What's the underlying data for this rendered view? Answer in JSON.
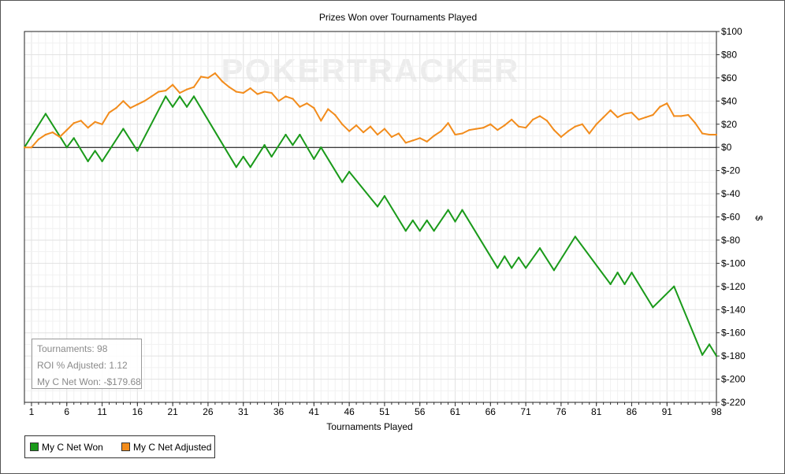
{
  "chart_data": {
    "type": "line",
    "title": "Prizes Won over Tournaments Played",
    "xlabel": "Tournaments Played",
    "ylabel": "$",
    "watermark": "POKERTRACKER",
    "xlim": [
      0,
      98
    ],
    "ylim": [
      -220,
      100
    ],
    "x_ticks": [
      1,
      6,
      11,
      16,
      21,
      26,
      31,
      36,
      41,
      46,
      51,
      56,
      61,
      66,
      71,
      76,
      81,
      86,
      91,
      98
    ],
    "y_ticks": [
      100,
      80,
      60,
      40,
      20,
      0,
      -20,
      -40,
      -60,
      -80,
      -100,
      -120,
      -140,
      -160,
      -180,
      -200,
      -220
    ],
    "y_tick_labels": [
      "$100",
      "$80",
      "$60",
      "$40",
      "$20",
      "$0",
      "$-20",
      "$-40",
      "$-60",
      "$-80",
      "$-100",
      "$-120",
      "$-140",
      "$-160",
      "$-180",
      "$-200",
      "$-220"
    ],
    "grid": true,
    "legend_position": "bottom-left",
    "series": [
      {
        "name": "My C Net Won",
        "color": "#1a9a1a",
        "points": [
          [
            0,
            0
          ],
          [
            3,
            29
          ],
          [
            6,
            0
          ],
          [
            7,
            8
          ],
          [
            9,
            -12
          ],
          [
            10,
            -3
          ],
          [
            11,
            -12
          ],
          [
            14,
            16
          ],
          [
            16,
            -3
          ],
          [
            20,
            44
          ],
          [
            21,
            35
          ],
          [
            22,
            44
          ],
          [
            23,
            35
          ],
          [
            24,
            44
          ],
          [
            30,
            -17
          ],
          [
            31,
            -8
          ],
          [
            32,
            -17
          ],
          [
            34,
            2
          ],
          [
            35,
            -8
          ],
          [
            37,
            11
          ],
          [
            38,
            2
          ],
          [
            39,
            11
          ],
          [
            41,
            -10
          ],
          [
            42,
            0
          ],
          [
            45,
            -30
          ],
          [
            46,
            -21
          ],
          [
            50,
            -51
          ],
          [
            51,
            -42
          ],
          [
            54,
            -72
          ],
          [
            55,
            -63
          ],
          [
            56,
            -72
          ],
          [
            57,
            -63
          ],
          [
            58,
            -72
          ],
          [
            60,
            -54
          ],
          [
            61,
            -64
          ],
          [
            62,
            -54
          ],
          [
            67,
            -104
          ],
          [
            68,
            -94
          ],
          [
            69,
            -104
          ],
          [
            70,
            -95
          ],
          [
            71,
            -104
          ],
          [
            73,
            -87
          ],
          [
            75,
            -106
          ],
          [
            78,
            -77
          ],
          [
            83,
            -118
          ],
          [
            84,
            -108
          ],
          [
            85,
            -118
          ],
          [
            86,
            -108
          ],
          [
            89,
            -138
          ],
          [
            92,
            -120
          ],
          [
            96,
            -179
          ],
          [
            97,
            -170
          ],
          [
            98,
            -180
          ]
        ]
      },
      {
        "name": "My C Net Adjusted",
        "color": "#f28c1c",
        "points": [
          [
            0,
            0
          ],
          [
            1,
            0
          ],
          [
            2,
            7
          ],
          [
            3,
            11
          ],
          [
            4,
            13
          ],
          [
            5,
            9
          ],
          [
            6,
            15
          ],
          [
            7,
            21
          ],
          [
            8,
            23
          ],
          [
            9,
            17
          ],
          [
            10,
            22
          ],
          [
            11,
            20
          ],
          [
            12,
            30
          ],
          [
            13,
            34
          ],
          [
            14,
            40
          ],
          [
            15,
            34
          ],
          [
            16,
            37
          ],
          [
            17,
            40
          ],
          [
            18,
            44
          ],
          [
            19,
            48
          ],
          [
            20,
            49
          ],
          [
            21,
            54
          ],
          [
            22,
            47
          ],
          [
            23,
            50
          ],
          [
            24,
            52
          ],
          [
            25,
            61
          ],
          [
            26,
            60
          ],
          [
            27,
            64
          ],
          [
            28,
            57
          ],
          [
            29,
            52
          ],
          [
            30,
            48
          ],
          [
            31,
            47
          ],
          [
            32,
            51
          ],
          [
            33,
            46
          ],
          [
            34,
            48
          ],
          [
            35,
            47
          ],
          [
            36,
            40
          ],
          [
            37,
            44
          ],
          [
            38,
            42
          ],
          [
            39,
            35
          ],
          [
            40,
            38
          ],
          [
            41,
            34
          ],
          [
            42,
            23
          ],
          [
            43,
            33
          ],
          [
            44,
            28
          ],
          [
            45,
            20
          ],
          [
            46,
            14
          ],
          [
            47,
            19
          ],
          [
            48,
            13
          ],
          [
            49,
            18
          ],
          [
            50,
            11
          ],
          [
            51,
            16
          ],
          [
            52,
            9
          ],
          [
            53,
            12
          ],
          [
            54,
            4
          ],
          [
            55,
            6
          ],
          [
            56,
            8
          ],
          [
            57,
            5
          ],
          [
            58,
            10
          ],
          [
            59,
            14
          ],
          [
            60,
            21
          ],
          [
            61,
            11
          ],
          [
            62,
            12
          ],
          [
            63,
            15
          ],
          [
            64,
            16
          ],
          [
            65,
            17
          ],
          [
            66,
            20
          ],
          [
            67,
            15
          ],
          [
            68,
            19
          ],
          [
            69,
            24
          ],
          [
            70,
            18
          ],
          [
            71,
            17
          ],
          [
            72,
            24
          ],
          [
            73,
            27
          ],
          [
            74,
            23
          ],
          [
            75,
            15
          ],
          [
            76,
            9
          ],
          [
            77,
            14
          ],
          [
            78,
            18
          ],
          [
            79,
            20
          ],
          [
            80,
            12
          ],
          [
            81,
            20
          ],
          [
            82,
            26
          ],
          [
            83,
            32
          ],
          [
            84,
            26
          ],
          [
            85,
            29
          ],
          [
            86,
            30
          ],
          [
            87,
            24
          ],
          [
            88,
            26
          ],
          [
            89,
            28
          ],
          [
            90,
            35
          ],
          [
            91,
            38
          ],
          [
            92,
            27
          ],
          [
            93,
            27
          ],
          [
            94,
            28
          ],
          [
            95,
            21
          ],
          [
            96,
            12
          ],
          [
            97,
            11
          ],
          [
            98,
            11
          ]
        ]
      }
    ]
  },
  "stats": {
    "tournaments": "Tournaments: 98",
    "roi": "ROI % Adjusted: 1.12",
    "net_won": "My C Net Won: -$179.68"
  },
  "legend": {
    "items": [
      {
        "label": "My C Net Won",
        "color": "#1a9a1a"
      },
      {
        "label": "My C Net Adjusted",
        "color": "#f28c1c"
      }
    ]
  }
}
